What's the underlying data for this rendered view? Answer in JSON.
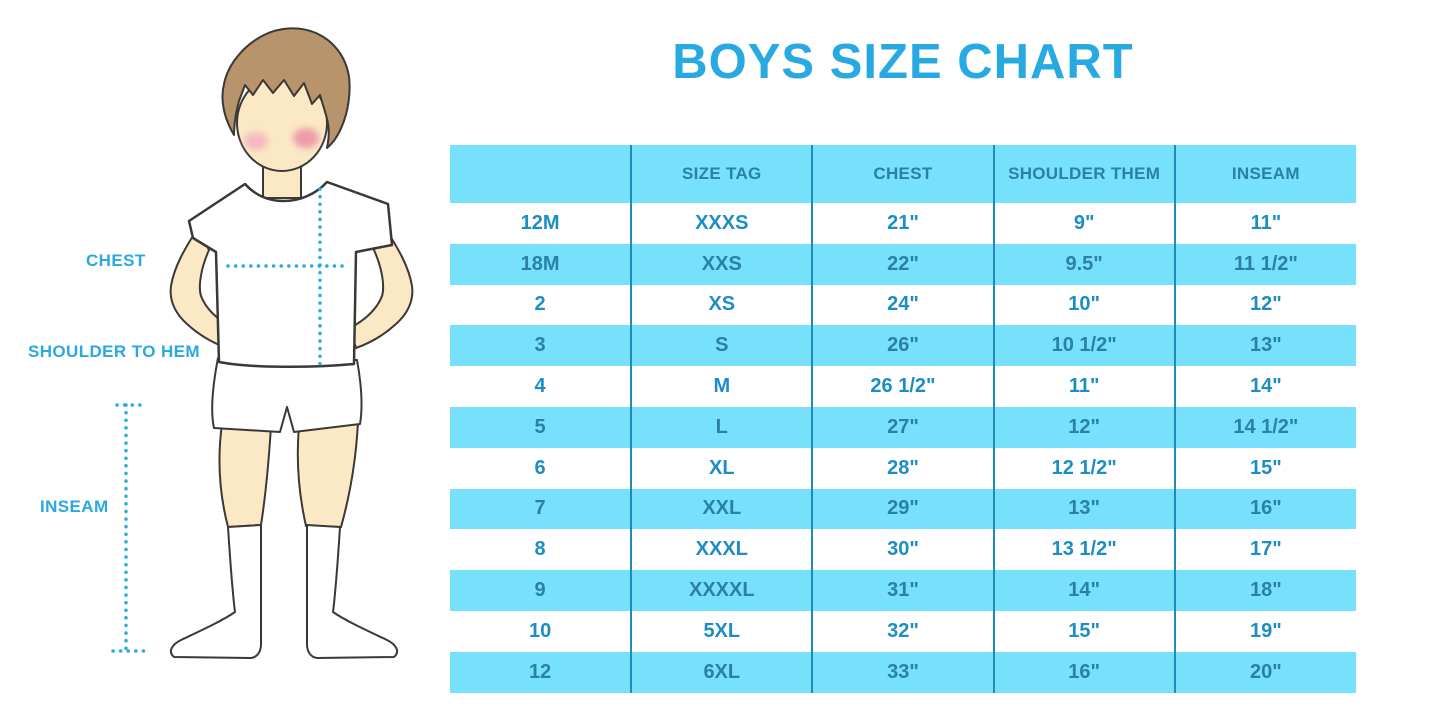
{
  "title": "BOYS SIZE CHART",
  "title_color": "#29a9e1",
  "chart_data": {
    "type": "table",
    "title": "BOYS SIZE CHART",
    "columns": [
      "",
      "SIZE TAG",
      "CHEST",
      "SHOULDER THEM",
      "INSEAM"
    ],
    "rows": [
      [
        "12M",
        "XXXS",
        "21\"",
        "9\"",
        "11\""
      ],
      [
        "18M",
        "XXS",
        "22\"",
        "9.5\"",
        "11 1/2\""
      ],
      [
        "2",
        "XS",
        "24\"",
        "10\"",
        "12\""
      ],
      [
        "3",
        "S",
        "26\"",
        "10 1/2\"",
        "13\""
      ],
      [
        "4",
        "M",
        "26 1/2\"",
        "11\"",
        "14\""
      ],
      [
        "5",
        "L",
        "27\"",
        "12\"",
        "14 1/2\""
      ],
      [
        "6",
        "XL",
        "28\"",
        "12 1/2\"",
        "15\""
      ],
      [
        "7",
        "XXL",
        "29\"",
        "13\"",
        "16\""
      ],
      [
        "8",
        "XXXL",
        "30\"",
        "13 1/2\"",
        "17\""
      ],
      [
        "9",
        "XXXXL",
        "31\"",
        "14\"",
        "18\""
      ],
      [
        "10",
        "5XL",
        "32\"",
        "15\"",
        "19\""
      ],
      [
        "12",
        "6XL",
        "33\"",
        "16\"",
        "20\""
      ]
    ],
    "layout": {
      "banding": "alternating rows, starting white",
      "band_color": "#77e0fa",
      "divider_color": "#1e8cba",
      "grid": "vertical dividers only"
    }
  },
  "figure": {
    "labels": {
      "chest": "CHEST",
      "shoulder_to_hem": "SHOULDER TO HEM",
      "inseam": "INSEAM"
    },
    "colors": {
      "label_text": "#29a9e1",
      "measure_dots": "#29abe2",
      "skin": "#fbe8c4",
      "hair": "#b7946b",
      "blush_left": "#f3aec0",
      "blush_right": "#ec8fa6",
      "outline": "#3c3835",
      "garments": "#ffffff"
    }
  },
  "table_colors": {
    "band": "#77e0fa",
    "divider": "#1e8cba",
    "header_text": "#2a80a8",
    "text_on_white": "#1d8ec5",
    "text_on_band": "#2a80a8"
  }
}
